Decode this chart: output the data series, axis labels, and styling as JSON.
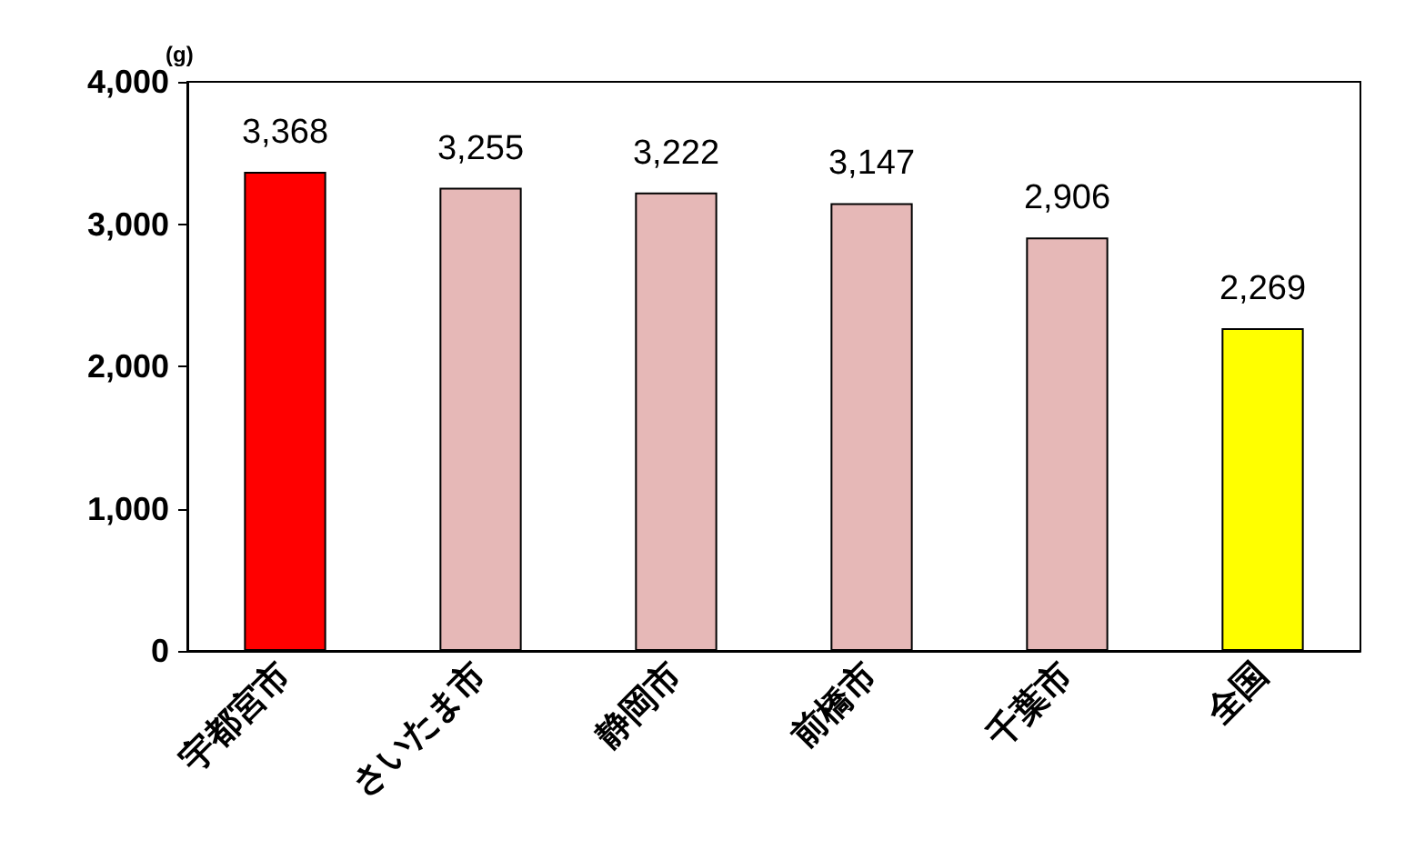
{
  "chart_data": {
    "type": "bar",
    "ylabel": "(g)",
    "categories": [
      "宇都宮市",
      "さいたま市",
      "静岡市",
      "前橋市",
      "千葉市",
      "全国"
    ],
    "values": [
      3368,
      3255,
      3222,
      3147,
      2906,
      2269
    ],
    "value_labels": [
      "3,368",
      "3,255",
      "3,222",
      "3,147",
      "2,906",
      "2,269"
    ],
    "colors": [
      "#ff0000",
      "#e6b8b7",
      "#e6b8b7",
      "#e6b8b7",
      "#e6b8b7",
      "#ffff00"
    ],
    "ylim": [
      0,
      4000
    ],
    "yticks": [
      0,
      {
        "value": 1000,
        "label": "1,000"
      },
      {
        "value": 2000,
        "label": "2,000"
      },
      {
        "value": 3000,
        "label": "3,000"
      },
      {
        "value": 4000,
        "label": "4,000"
      }
    ],
    "grid": false
  }
}
